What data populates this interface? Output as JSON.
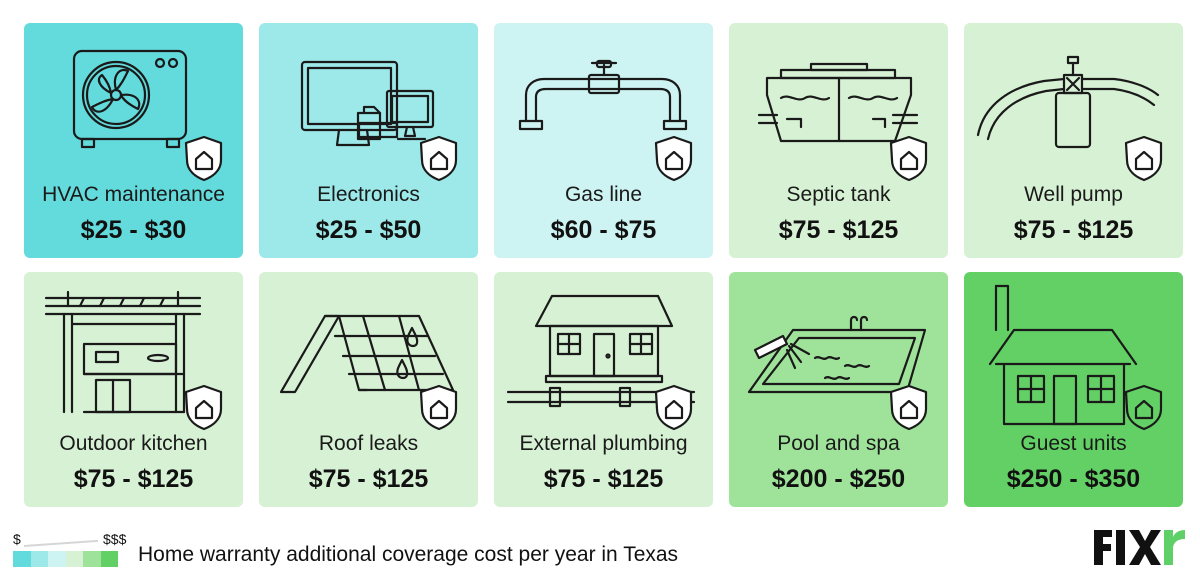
{
  "chart_data": {
    "type": "table",
    "title": "Home warranty additional coverage cost per year in Texas",
    "items": [
      {
        "name": "HVAC maintenance",
        "price": "$25 - $30",
        "low": 25,
        "high": 30,
        "color": "#63dadb"
      },
      {
        "name": "Electronics",
        "price": "$25 - $50",
        "low": 25,
        "high": 50,
        "color": "#9de8e8"
      },
      {
        "name": "Gas line",
        "price": "$60 - $75",
        "low": 60,
        "high": 75,
        "color": "#cdf3f2"
      },
      {
        "name": "Septic tank",
        "price": "$75 - $125",
        "low": 75,
        "high": 125,
        "color": "#d6f1d3"
      },
      {
        "name": "Well pump",
        "price": "$75 - $125",
        "low": 75,
        "high": 125,
        "color": "#d6f1d3"
      },
      {
        "name": "Outdoor kitchen",
        "price": "$75 - $125",
        "low": 75,
        "high": 125,
        "color": "#d6f1d3"
      },
      {
        "name": "Roof leaks",
        "price": "$75 - $125",
        "low": 75,
        "high": 125,
        "color": "#d6f1d3"
      },
      {
        "name": "External plumbing",
        "price": "$75 - $125",
        "low": 75,
        "high": 125,
        "color": "#d6f1d3"
      },
      {
        "name": "Pool and spa",
        "price": "$200 - $250",
        "low": 200,
        "high": 250,
        "color": "#9fe39b"
      },
      {
        "name": "Guest units",
        "price": "$250 - $350",
        "low": 250,
        "high": 350,
        "color": "#63d065"
      }
    ]
  },
  "legend": {
    "low_label": "$",
    "high_label": "$$$",
    "swatch_colors": [
      "#63dadb",
      "#9de8e8",
      "#cdf3f2",
      "#d6f1d3",
      "#9fe39b",
      "#63d065"
    ]
  },
  "caption": "Home warranty additional coverage cost per year in Texas",
  "brand": {
    "name": "FIXR",
    "color": "#5fd068"
  }
}
